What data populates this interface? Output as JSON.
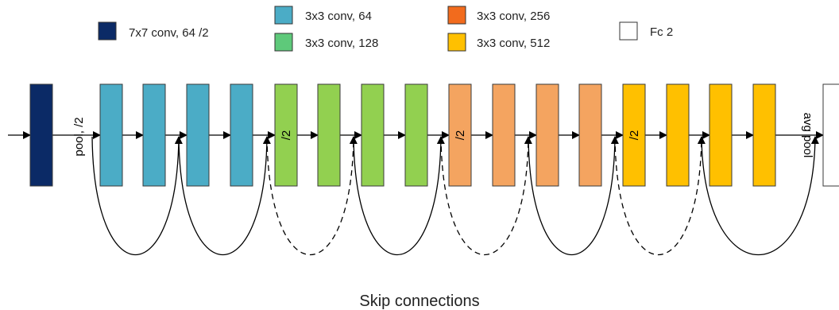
{
  "title": "",
  "caption": "Skip connections",
  "legend": [
    {
      "key": "conv7",
      "label": "7x7 conv, 64 /2",
      "color": "#0b2a66"
    },
    {
      "key": "c64",
      "label": "3x3 conv, 64",
      "color": "#4bacc6"
    },
    {
      "key": "c128",
      "label": "3x3 conv, 128",
      "color": "#5ec97a"
    },
    {
      "key": "c256",
      "label": "3x3 conv, 256",
      "color": "#f26b1d"
    },
    {
      "key": "c512",
      "label": "3x3 conv, 512",
      "color": "#ffc000"
    },
    {
      "key": "fc",
      "label": "Fc 2",
      "color": "#ffffff"
    }
  ],
  "block_colors": {
    "conv7": "#0b2a66",
    "c64": "#4bacc6",
    "c128": "#92d050",
    "c256": "#f4a460",
    "c512": "#ffc000",
    "fc": "#ffffff"
  },
  "labels": {
    "pool": "pool, /2",
    "avg_pool": "avg pool",
    "downsample": "/2"
  },
  "blocks": [
    {
      "type": "conv7"
    },
    {
      "type": "c64"
    },
    {
      "type": "c64"
    },
    {
      "type": "c64"
    },
    {
      "type": "c64"
    },
    {
      "type": "c128",
      "downsample": true
    },
    {
      "type": "c128"
    },
    {
      "type": "c128"
    },
    {
      "type": "c128"
    },
    {
      "type": "c256",
      "downsample": true
    },
    {
      "type": "c256"
    },
    {
      "type": "c256"
    },
    {
      "type": "c256"
    },
    {
      "type": "c512",
      "downsample": true
    },
    {
      "type": "c512"
    },
    {
      "type": "c512"
    },
    {
      "type": "c512"
    },
    {
      "type": "fc"
    }
  ],
  "skips": [
    {
      "from": 1,
      "to": 3,
      "style": "solid"
    },
    {
      "from": 3,
      "to": 5,
      "style": "solid"
    },
    {
      "from": 5,
      "to": 7,
      "style": "dashed"
    },
    {
      "from": 7,
      "to": 9,
      "style": "solid"
    },
    {
      "from": 9,
      "to": 11,
      "style": "dashed"
    },
    {
      "from": 11,
      "to": 13,
      "style": "solid"
    },
    {
      "from": 13,
      "to": 15,
      "style": "dashed"
    },
    {
      "from": 15,
      "to": 17,
      "style": "solid"
    }
  ]
}
